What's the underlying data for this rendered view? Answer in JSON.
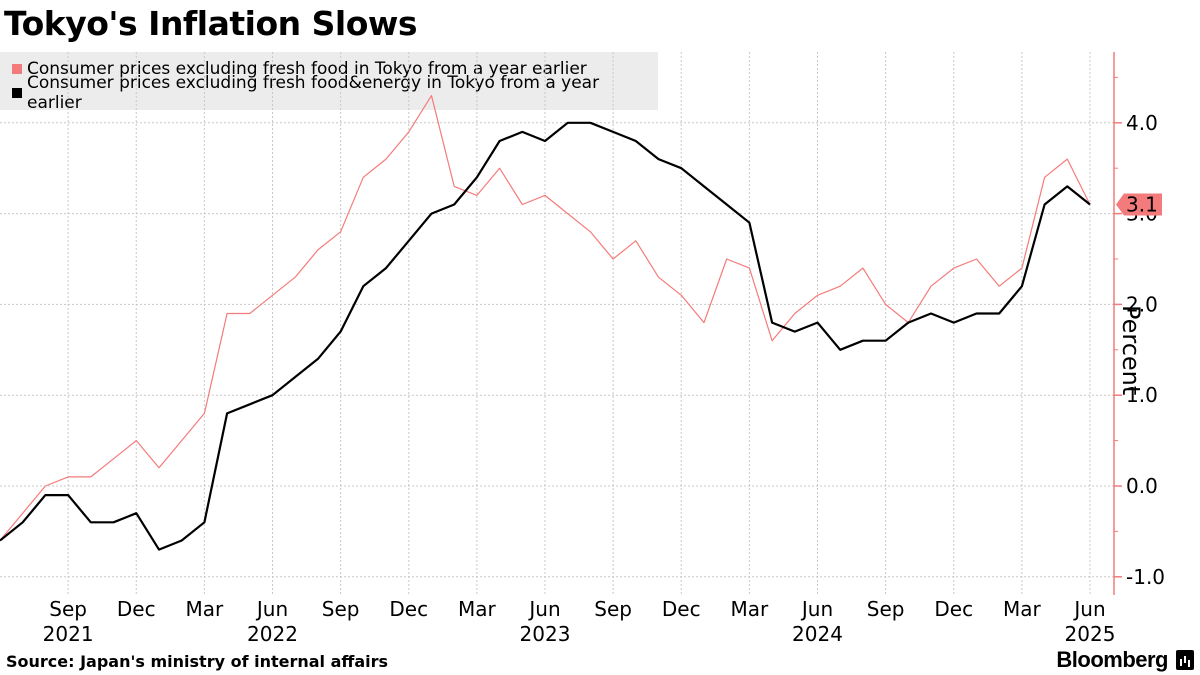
{
  "title": "Tokyo's Inflation Slows",
  "source": "Source: Japan's ministry of internal affairs",
  "brand": "Bloomberg",
  "chart_data": {
    "type": "line",
    "title": "Tokyo's Inflation Slows",
    "ylabel": "Percent",
    "xlabel": "",
    "ylim": [
      -1.2,
      4.8
    ],
    "yticks": [
      -1.0,
      0.0,
      1.0,
      2.0,
      3.0,
      4.0
    ],
    "ytick_labels": [
      "-1.0",
      "0.0",
      "1.0",
      "2.0",
      "3.0",
      "4.0"
    ],
    "x_start": "2021-06",
    "x_end": "2025-06",
    "xtick_labels": [
      {
        "month": "Sep",
        "year": "2021",
        "index": 3
      },
      {
        "month": "Dec",
        "year": "",
        "index": 6
      },
      {
        "month": "Mar",
        "year": "",
        "index": 9
      },
      {
        "month": "Jun",
        "year": "2022",
        "index": 12
      },
      {
        "month": "Sep",
        "year": "",
        "index": 15
      },
      {
        "month": "Dec",
        "year": "",
        "index": 18
      },
      {
        "month": "Mar",
        "year": "",
        "index": 21
      },
      {
        "month": "Jun",
        "year": "2023",
        "index": 24
      },
      {
        "month": "Sep",
        "year": "",
        "index": 27
      },
      {
        "month": "Dec",
        "year": "",
        "index": 30
      },
      {
        "month": "Mar",
        "year": "",
        "index": 33
      },
      {
        "month": "Jun",
        "year": "2024",
        "index": 36
      },
      {
        "month": "Sep",
        "year": "",
        "index": 39
      },
      {
        "month": "Dec",
        "year": "",
        "index": 42
      },
      {
        "month": "Mar",
        "year": "",
        "index": 45
      },
      {
        "month": "Jun",
        "year": "2025",
        "index": 48
      }
    ],
    "series": [
      {
        "name": "Consumer prices excluding fresh food in Tokyo from a year earlier",
        "color": "#f47b7b",
        "values": [
          -0.6,
          -0.3,
          0.0,
          0.1,
          0.1,
          0.3,
          0.5,
          0.2,
          0.5,
          0.8,
          1.9,
          1.9,
          2.1,
          2.3,
          2.6,
          2.8,
          3.4,
          3.6,
          3.9,
          4.3,
          3.3,
          3.2,
          3.5,
          3.1,
          3.2,
          3.0,
          2.8,
          2.5,
          2.7,
          2.3,
          2.1,
          1.8,
          2.5,
          2.4,
          1.6,
          1.9,
          2.1,
          2.2,
          2.4,
          2.0,
          1.8,
          2.2,
          2.4,
          2.5,
          2.2,
          2.4,
          3.4,
          3.6,
          3.1
        ]
      },
      {
        "name": "Consumer prices excluding fresh food&energy in Tokyo from a year earlier",
        "color": "#000000",
        "values": [
          -0.6,
          -0.4,
          -0.1,
          -0.1,
          -0.4,
          -0.4,
          -0.3,
          -0.7,
          -0.6,
          -0.4,
          0.8,
          0.9,
          1.0,
          1.2,
          1.4,
          1.7,
          2.2,
          2.4,
          2.7,
          3.0,
          3.1,
          3.4,
          3.8,
          3.9,
          3.8,
          4.0,
          4.0,
          3.9,
          3.8,
          3.6,
          3.5,
          3.3,
          3.1,
          2.9,
          1.8,
          1.7,
          1.8,
          1.5,
          1.6,
          1.6,
          1.8,
          1.9,
          1.8,
          1.9,
          1.9,
          2.2,
          3.1,
          3.3,
          3.1
        ]
      }
    ],
    "last_value_label": "3.1",
    "accent_color": "#f47b7b"
  }
}
